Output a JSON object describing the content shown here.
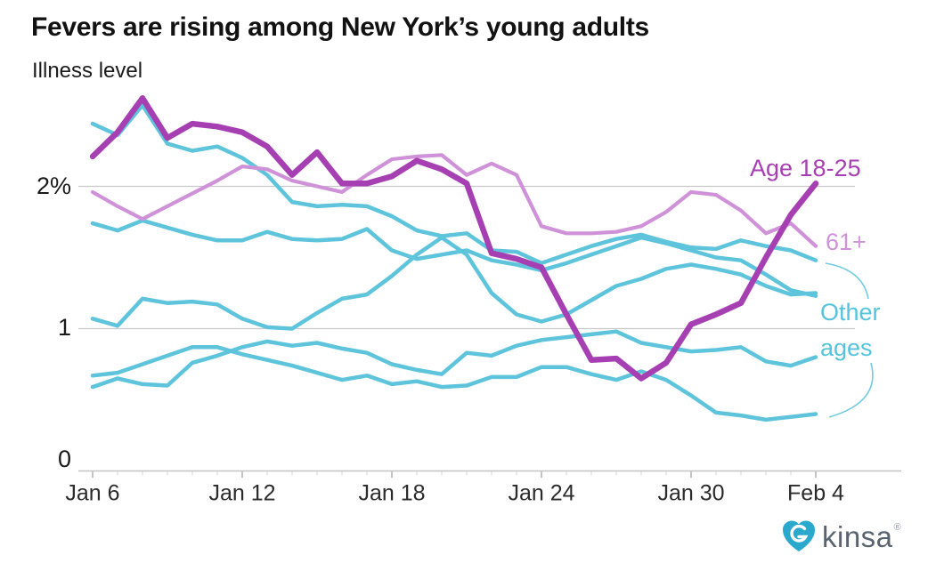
{
  "header": {
    "title": "Fevers are rising among New York’s young adults",
    "subtitle": "Illness level"
  },
  "chart_data": {
    "type": "line",
    "x": [
      "Jan 6",
      "Jan 7",
      "Jan 8",
      "Jan 9",
      "Jan 10",
      "Jan 11",
      "Jan 12",
      "Jan 13",
      "Jan 14",
      "Jan 15",
      "Jan 16",
      "Jan 17",
      "Jan 18",
      "Jan 19",
      "Jan 20",
      "Jan 21",
      "Jan 22",
      "Jan 23",
      "Jan 24",
      "Jan 25",
      "Jan 26",
      "Jan 27",
      "Jan 28",
      "Jan 29",
      "Jan 30",
      "Jan 31",
      "Feb 1",
      "Feb 2",
      "Feb 3",
      "Feb 4"
    ],
    "x_major_tick_indices": [
      0,
      6,
      12,
      18,
      24,
      29
    ],
    "x_major_tick_labels": [
      "Jan 6",
      "Jan 12",
      "Jan 18",
      "Jan 24",
      "Jan 30",
      "Feb 4"
    ],
    "y_axis": {
      "label": "Illness level",
      "range": [
        0,
        2.75
      ],
      "gridlines": [
        1,
        2
      ],
      "ticks": [
        {
          "v": 0,
          "label": "0"
        },
        {
          "v": 1,
          "label": "1"
        },
        {
          "v": 2,
          "label": "2%"
        }
      ]
    },
    "series": [
      {
        "id": "other-1",
        "name": "Other ages",
        "color": "#5ec4dc",
        "width": 4.5,
        "values": [
          2.44,
          2.36,
          2.57,
          2.3,
          2.25,
          2.28,
          2.2,
          2.08,
          1.89,
          1.86,
          1.87,
          1.86,
          1.79,
          1.69,
          1.65,
          1.67,
          1.55,
          1.54,
          1.46,
          1.52,
          1.58,
          1.63,
          1.66,
          1.61,
          1.57,
          1.56,
          1.62,
          1.58,
          1.55,
          1.48
        ]
      },
      {
        "id": "other-2",
        "name": "Other ages",
        "color": "#5ec4dc",
        "width": 4.5,
        "values": [
          1.74,
          1.69,
          1.76,
          1.71,
          1.66,
          1.62,
          1.62,
          1.68,
          1.63,
          1.62,
          1.63,
          1.7,
          1.55,
          1.49,
          1.52,
          1.55,
          1.48,
          1.45,
          1.41,
          1.46,
          1.52,
          1.58,
          1.64,
          1.6,
          1.55,
          1.5,
          1.48,
          1.38,
          1.27,
          1.23
        ]
      },
      {
        "id": "other-3",
        "name": "Other ages",
        "color": "#5ec4dc",
        "width": 4.5,
        "values": [
          1.07,
          1.02,
          1.21,
          1.18,
          1.19,
          1.17,
          1.07,
          1.01,
          1.0,
          1.11,
          1.21,
          1.24,
          1.37,
          1.52,
          1.64,
          1.52,
          1.25,
          1.1,
          1.05,
          1.1,
          1.2,
          1.3,
          1.35,
          1.42,
          1.45,
          1.42,
          1.38,
          1.3,
          1.24,
          1.25
        ]
      },
      {
        "id": "other-4",
        "name": "Other ages",
        "color": "#5ec4dc",
        "width": 4.5,
        "values": [
          0.67,
          0.69,
          0.75,
          0.81,
          0.87,
          0.87,
          0.82,
          0.78,
          0.74,
          0.69,
          0.64,
          0.67,
          0.61,
          0.63,
          0.59,
          0.6,
          0.66,
          0.66,
          0.73,
          0.73,
          0.68,
          0.64,
          0.7,
          0.64,
          0.53,
          0.41,
          0.39,
          0.36,
          0.38,
          0.4
        ]
      },
      {
        "id": "other-5",
        "name": "Other ages",
        "color": "#5ec4dc",
        "width": 4.5,
        "values": [
          0.59,
          0.65,
          0.61,
          0.6,
          0.76,
          0.81,
          0.87,
          0.91,
          0.88,
          0.9,
          0.86,
          0.83,
          0.75,
          0.71,
          0.68,
          0.83,
          0.81,
          0.88,
          0.92,
          0.94,
          0.96,
          0.98,
          0.9,
          0.87,
          0.84,
          0.85,
          0.87,
          0.77,
          0.74,
          0.8
        ]
      },
      {
        "id": "age-61-plus",
        "name": "61+",
        "color": "#cf92d8",
        "width": 4.2,
        "values": [
          1.96,
          1.86,
          1.77,
          1.86,
          1.95,
          2.04,
          2.14,
          2.12,
          2.04,
          2.0,
          1.96,
          2.08,
          2.19,
          2.21,
          2.22,
          2.08,
          2.16,
          2.08,
          1.72,
          1.67,
          1.67,
          1.68,
          1.72,
          1.82,
          1.96,
          1.94,
          1.83,
          1.67,
          1.74,
          1.58
        ]
      },
      {
        "id": "age-18-25",
        "name": "Age 18-25",
        "color": "#a640b2",
        "width": 6.5,
        "values": [
          2.21,
          2.38,
          2.62,
          2.34,
          2.44,
          2.42,
          2.38,
          2.28,
          2.08,
          2.24,
          2.02,
          2.02,
          2.07,
          2.18,
          2.12,
          2.02,
          1.53,
          1.49,
          1.43,
          1.1,
          0.78,
          0.79,
          0.65,
          0.76,
          1.03,
          1.1,
          1.18,
          1.5,
          1.8,
          2.02
        ]
      }
    ],
    "annotations": {
      "age": "Age 18-25",
      "older": "61+",
      "other_line1": "Other",
      "other_line2": "ages"
    }
  },
  "footer": {
    "brand": "kinsa",
    "registered": "®"
  },
  "colors": {
    "age_18_25": "#a640b2",
    "age_61_plus": "#cf92d8",
    "other_ages": "#5ec4dc",
    "gridline": "#c9c9c9",
    "axis": "#c4c4c4",
    "tick_label": "#2b2b2b",
    "logo_teal": "#2aa9cd",
    "logo_gray": "#5a6470"
  }
}
